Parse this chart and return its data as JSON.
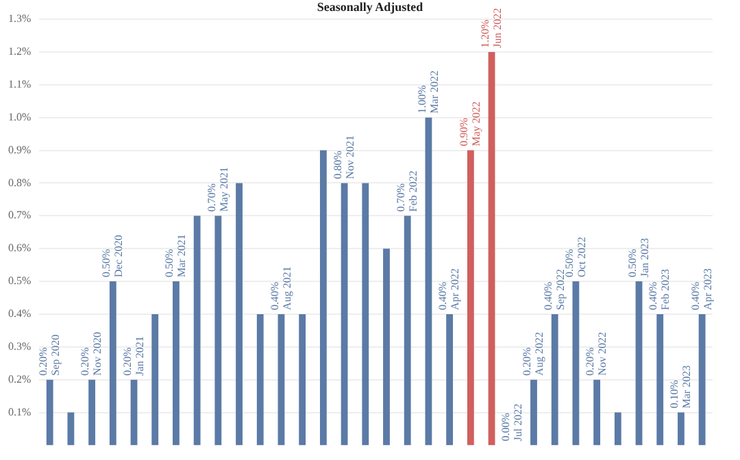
{
  "chart_data": {
    "type": "bar",
    "subtitle": "Seasonally Adjusted",
    "categories": [
      null,
      null,
      null,
      null,
      null,
      null,
      null,
      null,
      null,
      null,
      null,
      null,
      null,
      null,
      null,
      null,
      null,
      null,
      null,
      null,
      null,
      null,
      null,
      null,
      null,
      null,
      null,
      null,
      null,
      null,
      null,
      null
    ],
    "values": [
      0.2,
      0.1,
      0.2,
      0.5,
      0.2,
      0.4,
      0.5,
      0.7,
      0.7,
      0.8,
      0.4,
      0.4,
      0.4,
      0.9,
      0.8,
      0.8,
      0.6,
      0.7,
      1.0,
      0.4,
      0.9,
      1.2,
      0.0,
      0.2,
      0.4,
      0.5,
      0.2,
      0.1,
      0.5,
      0.4,
      0.1,
      0.4
    ],
    "colors": [
      "#5b7aa6",
      "#5b7aa6",
      "#5b7aa6",
      "#5b7aa6",
      "#5b7aa6",
      "#5b7aa6",
      "#5b7aa6",
      "#5b7aa6",
      "#5b7aa6",
      "#5b7aa6",
      "#5b7aa6",
      "#5b7aa6",
      "#5b7aa6",
      "#5b7aa6",
      "#5b7aa6",
      "#5b7aa6",
      "#5b7aa6",
      "#5b7aa6",
      "#5b7aa6",
      "#5b7aa6",
      "#d0605e",
      "#d0605e",
      "#5b7aa6",
      "#5b7aa6",
      "#5b7aa6",
      "#5b7aa6",
      "#5b7aa6",
      "#5b7aa6",
      "#5b7aa6",
      "#5b7aa6",
      "#5b7aa6",
      "#5b7aa6"
    ],
    "value_labels": [
      "0.20%\nSep 2020",
      null,
      "0.20%\nNov 2020",
      "0.50%\nDec 2020",
      "0.20%\nJan 2021",
      null,
      "0.50%\nMar 2021",
      null,
      "0.70%\nMay 2021",
      null,
      null,
      "0.40%\nAug 2021",
      null,
      null,
      "0.80%\nNov 2021",
      null,
      null,
      "0.70%\nFeb 2022",
      "1.00%\nMar 2022",
      "0.40%\nApr 2022",
      "0.90%\nMay 2022",
      "1.20%\nJun 2022",
      "0.00%\nJul 2022",
      "0.20%\nAug 2022",
      "0.40%\nSep 2022",
      "0.50%\nOct 2022",
      "0.20%\nNov 2022",
      null,
      "0.50%\nJan 2023",
      "0.40%\nFeb 2023",
      "0.10%\nMar 2023",
      "0.40%\nApr 2023"
    ],
    "ylim": [
      0,
      1.3
    ],
    "yticks": [
      {
        "value": 0.1,
        "label": "0.1%"
      },
      {
        "value": 0.2,
        "label": "0.2%"
      },
      {
        "value": 0.3,
        "label": "0.3%"
      },
      {
        "value": 0.4,
        "label": "0.4%"
      },
      {
        "value": 0.5,
        "label": "0.5%"
      },
      {
        "value": 0.6,
        "label": "0.6%"
      },
      {
        "value": 0.7,
        "label": "0.7%"
      },
      {
        "value": 0.8,
        "label": "0.8%"
      },
      {
        "value": 0.9,
        "label": "0.9%"
      },
      {
        "value": 1.0,
        "label": "1.0%"
      },
      {
        "value": 1.1,
        "label": "1.1%"
      },
      {
        "value": 1.2,
        "label": "1.2%"
      },
      {
        "value": 1.3,
        "label": "1.3%"
      }
    ],
    "grid": "y",
    "legend": false,
    "tick_labels": "y"
  }
}
